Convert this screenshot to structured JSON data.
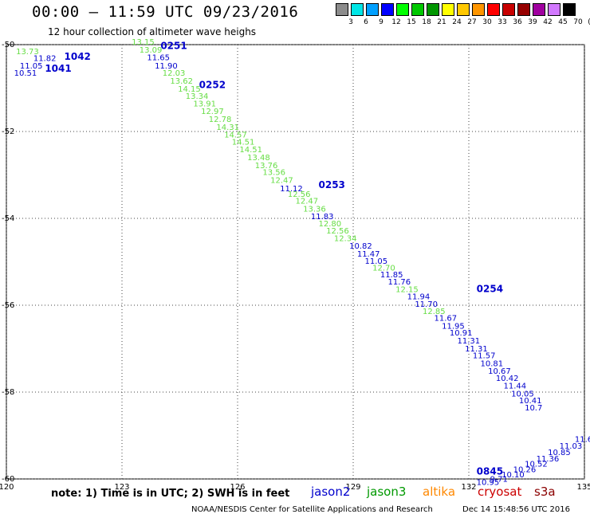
{
  "header": {
    "title": "00:00 – 11:59 UTC 09/23/2016",
    "subtitle": "12 hour collection of altimeter wave heighs"
  },
  "scale": {
    "labels": [
      "3",
      "6",
      "9",
      "12",
      "15",
      "18",
      "21",
      "24",
      "27",
      "30",
      "33",
      "36",
      "39",
      "42",
      "45",
      "70",
      "(ft)"
    ],
    "colors": [
      "#8c8c8c",
      "#00e6e6",
      "#00a0ff",
      "#0000ff",
      "#00ff00",
      "#00c800",
      "#009600",
      "#ffff00",
      "#ffc800",
      "#ff9600",
      "#ff0000",
      "#c80000",
      "#960000",
      "#a000a0",
      "#d278ff",
      "#000000"
    ]
  },
  "map": {
    "lon_ticks": [
      "120",
      "123",
      "126",
      "129",
      "132",
      "135"
    ],
    "lat_ticks": [
      "-50",
      "-52",
      "-54",
      "-56",
      "-58",
      "-60"
    ],
    "lon_range": [
      120,
      135
    ],
    "lat_range": [
      -50,
      -60
    ],
    "grid": "dotted"
  },
  "passes": [
    {
      "label": "1042",
      "color": "#0000cc",
      "lon": 121.5,
      "lat": -50.35
    },
    {
      "label": "1041",
      "color": "#0000cc",
      "lon": 121.0,
      "lat": -50.62
    },
    {
      "label": "0251",
      "color": "#0000cc",
      "lon": 124.0,
      "lat": -50.1
    },
    {
      "label": "0252",
      "color": "#0000cc",
      "lon": 125.0,
      "lat": -51.0
    },
    {
      "label": "0253",
      "color": "#0000cc",
      "lon": 128.1,
      "lat": -53.3
    },
    {
      "label": "0254",
      "color": "#0000cc",
      "lon": 132.2,
      "lat": -55.7
    },
    {
      "label": "0845",
      "color": "#0000cc",
      "lon": 132.2,
      "lat": -59.9
    }
  ],
  "readings": [
    {
      "v": "13.73",
      "c": "#66dd44",
      "lon": 120.25,
      "lat": -50.22
    },
    {
      "v": "11.82",
      "c": "#0000cc",
      "lon": 120.7,
      "lat": -50.38
    },
    {
      "v": "11.05",
      "c": "#0000cc",
      "lon": 120.35,
      "lat": -50.55
    },
    {
      "v": "10.51",
      "c": "#0000cc",
      "lon": 120.2,
      "lat": -50.72
    },
    {
      "v": "13.15",
      "c": "#66dd44",
      "lon": 123.25,
      "lat": -50.0
    },
    {
      "v": "13.09",
      "c": "#66dd44",
      "lon": 123.45,
      "lat": -50.18
    },
    {
      "v": "11.65",
      "c": "#0000cc",
      "lon": 123.65,
      "lat": -50.36
    },
    {
      "v": "11.90",
      "c": "#0000cc",
      "lon": 123.85,
      "lat": -50.55
    },
    {
      "v": "12.03",
      "c": "#66dd44",
      "lon": 124.05,
      "lat": -50.72
    },
    {
      "v": "13.62",
      "c": "#66dd44",
      "lon": 124.25,
      "lat": -50.9
    },
    {
      "v": "14.15",
      "c": "#66dd44",
      "lon": 124.45,
      "lat": -51.08
    },
    {
      "v": "13.34",
      "c": "#66dd44",
      "lon": 124.65,
      "lat": -51.25
    },
    {
      "v": "13.91",
      "c": "#66dd44",
      "lon": 124.85,
      "lat": -51.42
    },
    {
      "v": "12.97",
      "c": "#66dd44",
      "lon": 125.05,
      "lat": -51.6
    },
    {
      "v": "12.78",
      "c": "#66dd44",
      "lon": 125.25,
      "lat": -51.78
    },
    {
      "v": "14.31",
      "c": "#66dd44",
      "lon": 125.45,
      "lat": -51.96
    },
    {
      "v": "14.57",
      "c": "#66dd44",
      "lon": 125.65,
      "lat": -52.14
    },
    {
      "v": "14.51",
      "c": "#66dd44",
      "lon": 125.85,
      "lat": -52.3
    },
    {
      "v": "14.51",
      "c": "#66dd44",
      "lon": 126.05,
      "lat": -52.48
    },
    {
      "v": "13.48",
      "c": "#66dd44",
      "lon": 126.25,
      "lat": -52.66
    },
    {
      "v": "13.76",
      "c": "#66dd44",
      "lon": 126.45,
      "lat": -52.84
    },
    {
      "v": "13.56",
      "c": "#66dd44",
      "lon": 126.65,
      "lat": -53.0
    },
    {
      "v": "12.47",
      "c": "#66dd44",
      "lon": 126.85,
      "lat": -53.18
    },
    {
      "v": "11.12",
      "c": "#0000cc",
      "lon": 127.1,
      "lat": -53.38
    },
    {
      "v": "12.56",
      "c": "#66dd44",
      "lon": 127.3,
      "lat": -53.5
    },
    {
      "v": "12.47",
      "c": "#66dd44",
      "lon": 127.5,
      "lat": -53.66
    },
    {
      "v": "13.36",
      "c": "#66dd44",
      "lon": 127.7,
      "lat": -53.84
    },
    {
      "v": "11.83",
      "c": "#0000cc",
      "lon": 127.9,
      "lat": -54.02
    },
    {
      "v": "12.80",
      "c": "#66dd44",
      "lon": 128.1,
      "lat": -54.18
    },
    {
      "v": "12.56",
      "c": "#66dd44",
      "lon": 128.3,
      "lat": -54.35
    },
    {
      "v": "12.34",
      "c": "#66dd44",
      "lon": 128.5,
      "lat": -54.52
    },
    {
      "v": "10.82",
      "c": "#0000cc",
      "lon": 128.9,
      "lat": -54.7
    },
    {
      "v": "11.47",
      "c": "#0000cc",
      "lon": 129.1,
      "lat": -54.88
    },
    {
      "v": "11.05",
      "c": "#0000cc",
      "lon": 129.3,
      "lat": -55.05
    },
    {
      "v": "12.70",
      "c": "#66dd44",
      "lon": 129.5,
      "lat": -55.2
    },
    {
      "v": "11.85",
      "c": "#0000cc",
      "lon": 129.7,
      "lat": -55.36
    },
    {
      "v": "11.76",
      "c": "#0000cc",
      "lon": 129.9,
      "lat": -55.52
    },
    {
      "v": "12.15",
      "c": "#66dd44",
      "lon": 130.1,
      "lat": -55.7
    },
    {
      "v": "11.94",
      "c": "#0000cc",
      "lon": 130.4,
      "lat": -55.86
    },
    {
      "v": "11.70",
      "c": "#0000cc",
      "lon": 130.6,
      "lat": -56.04
    },
    {
      "v": "12.85",
      "c": "#66dd44",
      "lon": 130.8,
      "lat": -56.2
    },
    {
      "v": "11.67",
      "c": "#0000cc",
      "lon": 131.1,
      "lat": -56.36
    },
    {
      "v": "11.95",
      "c": "#0000cc",
      "lon": 131.3,
      "lat": -56.54
    },
    {
      "v": "10.91",
      "c": "#0000cc",
      "lon": 131.5,
      "lat": -56.7
    },
    {
      "v": "11.31",
      "c": "#0000cc",
      "lon": 131.7,
      "lat": -56.88
    },
    {
      "v": "11.31",
      "c": "#0000cc",
      "lon": 131.9,
      "lat": -57.06
    },
    {
      "v": "11.57",
      "c": "#0000cc",
      "lon": 132.1,
      "lat": -57.22
    },
    {
      "v": "10.81",
      "c": "#0000cc",
      "lon": 132.3,
      "lat": -57.4
    },
    {
      "v": "10.67",
      "c": "#0000cc",
      "lon": 132.5,
      "lat": -57.58
    },
    {
      "v": "10.42",
      "c": "#0000cc",
      "lon": 132.7,
      "lat": -57.74
    },
    {
      "v": "11.44",
      "c": "#0000cc",
      "lon": 132.9,
      "lat": -57.92
    },
    {
      "v": "10.05",
      "c": "#0000cc",
      "lon": 133.1,
      "lat": -58.1
    },
    {
      "v": "10.41",
      "c": "#0000cc",
      "lon": 133.3,
      "lat": -58.26
    },
    {
      "v": "10.7",
      "c": "#0000cc",
      "lon": 133.45,
      "lat": -58.42
    },
    {
      "v": "11.6",
      "c": "#0000cc",
      "lon": 134.75,
      "lat": -59.15
    },
    {
      "v": "11.03",
      "c": "#0000cc",
      "lon": 134.35,
      "lat": -59.3
    },
    {
      "v": "10.85",
      "c": "#0000cc",
      "lon": 134.05,
      "lat": -59.45
    },
    {
      "v": "11.36",
      "c": "#0000cc",
      "lon": 133.75,
      "lat": -59.6
    },
    {
      "v": "10.52",
      "c": "#0000cc",
      "lon": 133.45,
      "lat": -59.72
    },
    {
      "v": "10.26",
      "c": "#0000cc",
      "lon": 133.15,
      "lat": -59.84
    },
    {
      "v": "10.10",
      "c": "#0000cc",
      "lon": 132.85,
      "lat": -59.96
    },
    {
      "v": "9.71",
      "c": "#0000cc",
      "lon": 132.55,
      "lat": -60.06
    },
    {
      "v": "10.95",
      "c": "#0000cc",
      "lon": 132.2,
      "lat": -60.14
    }
  ],
  "legend": {
    "note": "note: 1) Time is in UTC; 2) SWH is in feet",
    "satellites": [
      {
        "name": "jason2",
        "color": "#0000cc"
      },
      {
        "name": "jason3",
        "color": "#009900"
      },
      {
        "name": "altika",
        "color": "#ff8800"
      },
      {
        "name": "cryosat",
        "color": "#cc0000"
      },
      {
        "name": "s3a",
        "color": "#8b0000"
      }
    ]
  },
  "footer": {
    "credit": "NOAA/NESDIS Center for Satellite Applications and Research",
    "stamp": "Dec 14 15:48:56 UTC 2016"
  }
}
